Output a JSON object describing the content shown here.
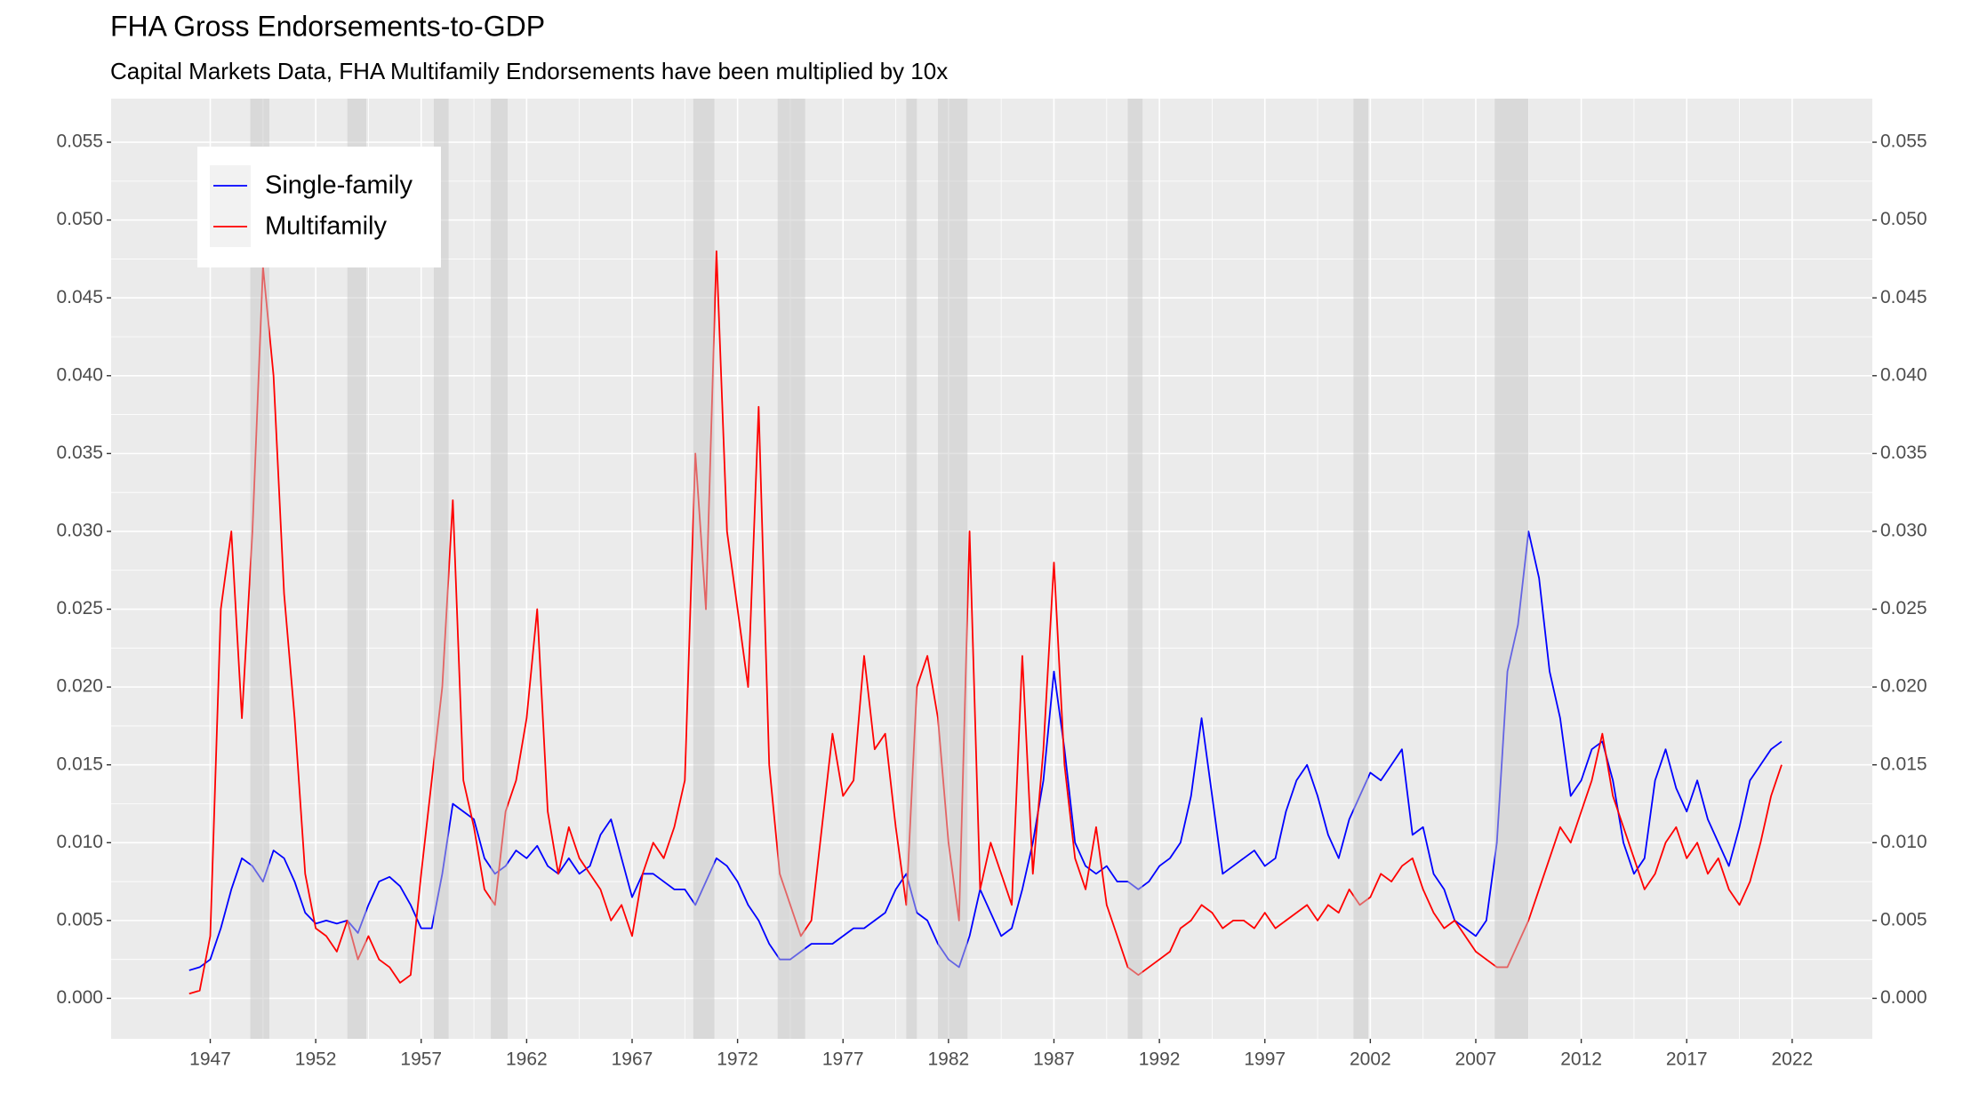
{
  "chart_data": {
    "type": "line",
    "title": "FHA Gross Endorsements-to-GDP",
    "subtitle": "Capital Markets Data, FHA Multifamily Endorsements have been multiplied by 10x",
    "x": [
      1946,
      1946.5,
      1947,
      1947.5,
      1948,
      1948.5,
      1949,
      1949.5,
      1950,
      1950.5,
      1951,
      1951.5,
      1952,
      1952.5,
      1953,
      1953.5,
      1954,
      1954.5,
      1955,
      1955.5,
      1956,
      1956.5,
      1957,
      1957.5,
      1958,
      1958.5,
      1959,
      1959.5,
      1960,
      1960.5,
      1961,
      1961.5,
      1962,
      1962.5,
      1963,
      1963.5,
      1964,
      1964.5,
      1965,
      1965.5,
      1966,
      1966.5,
      1967,
      1967.5,
      1968,
      1968.5,
      1969,
      1969.5,
      1970,
      1970.5,
      1971,
      1971.5,
      1972,
      1972.5,
      1973,
      1973.5,
      1974,
      1974.5,
      1975,
      1975.5,
      1976,
      1976.5,
      1977,
      1977.5,
      1978,
      1978.5,
      1979,
      1979.5,
      1980,
      1980.5,
      1981,
      1981.5,
      1982,
      1982.5,
      1983,
      1983.5,
      1984,
      1984.5,
      1985,
      1985.5,
      1986,
      1986.5,
      1987,
      1987.5,
      1988,
      1988.5,
      1989,
      1989.5,
      1990,
      1990.5,
      1991,
      1991.5,
      1992,
      1992.5,
      1993,
      1993.5,
      1994,
      1994.5,
      1995,
      1995.5,
      1996,
      1996.5,
      1997,
      1997.5,
      1998,
      1998.5,
      1999,
      1999.5,
      2000,
      2000.5,
      2001,
      2001.5,
      2002,
      2002.5,
      2003,
      2003.5,
      2004,
      2004.5,
      2005,
      2005.5,
      2006,
      2006.5,
      2007,
      2007.5,
      2008,
      2008.5,
      2009,
      2009.5,
      2010,
      2010.5,
      2011,
      2011.5,
      2012,
      2012.5,
      2013,
      2013.5,
      2014,
      2014.5,
      2015,
      2015.5,
      2016,
      2016.5,
      2017,
      2017.5,
      2018,
      2018.5,
      2019,
      2019.5,
      2020,
      2020.5,
      2021,
      2021.5
    ],
    "series": [
      {
        "name": "Single-family",
        "color": "blue",
        "values": [
          0.0018,
          0.002,
          0.0025,
          0.0045,
          0.007,
          0.009,
          0.0085,
          0.0075,
          0.0095,
          0.009,
          0.0075,
          0.0055,
          0.0048,
          0.005,
          0.0048,
          0.005,
          0.0042,
          0.006,
          0.0075,
          0.0078,
          0.0072,
          0.006,
          0.0045,
          0.0045,
          0.008,
          0.0125,
          0.012,
          0.0115,
          0.009,
          0.008,
          0.0085,
          0.0095,
          0.009,
          0.0098,
          0.0085,
          0.008,
          0.009,
          0.008,
          0.0085,
          0.0105,
          0.0115,
          0.009,
          0.0065,
          0.008,
          0.008,
          0.0075,
          0.007,
          0.007,
          0.006,
          0.0075,
          0.009,
          0.0085,
          0.0075,
          0.006,
          0.005,
          0.0035,
          0.0025,
          0.0025,
          0.003,
          0.0035,
          0.0035,
          0.0035,
          0.004,
          0.0045,
          0.0045,
          0.005,
          0.0055,
          0.007,
          0.008,
          0.0055,
          0.005,
          0.0035,
          0.0025,
          0.002,
          0.004,
          0.007,
          0.0055,
          0.004,
          0.0045,
          0.007,
          0.01,
          0.014,
          0.021,
          0.016,
          0.01,
          0.0085,
          0.008,
          0.0085,
          0.0075,
          0.0075,
          0.007,
          0.0075,
          0.0085,
          0.009,
          0.01,
          0.013,
          0.018,
          0.013,
          0.008,
          0.0085,
          0.009,
          0.0095,
          0.0085,
          0.009,
          0.012,
          0.014,
          0.015,
          0.013,
          0.0105,
          0.009,
          0.0115,
          0.013,
          0.0145,
          0.014,
          0.015,
          0.016,
          0.0105,
          0.011,
          0.008,
          0.007,
          0.005,
          0.0045,
          0.004,
          0.005,
          0.01,
          0.021,
          0.024,
          0.03,
          0.027,
          0.021,
          0.018,
          0.013,
          0.014,
          0.016,
          0.0165,
          0.014,
          0.01,
          0.008,
          0.009,
          0.014,
          0.016,
          0.0135,
          0.012,
          0.014,
          0.0115,
          0.01,
          0.0085,
          0.011,
          0.014,
          0.015,
          0.016,
          0.0165
        ]
      },
      {
        "name": "Multifamily",
        "color": "red",
        "values": [
          0.0003,
          0.0005,
          0.004,
          0.025,
          0.03,
          0.018,
          0.03,
          0.047,
          0.04,
          0.026,
          0.018,
          0.008,
          0.0045,
          0.004,
          0.003,
          0.005,
          0.0025,
          0.004,
          0.0025,
          0.002,
          0.001,
          0.0015,
          0.008,
          0.014,
          0.02,
          0.032,
          0.014,
          0.011,
          0.007,
          0.006,
          0.012,
          0.014,
          0.018,
          0.025,
          0.012,
          0.008,
          0.011,
          0.009,
          0.008,
          0.007,
          0.005,
          0.006,
          0.004,
          0.008,
          0.01,
          0.009,
          0.011,
          0.014,
          0.035,
          0.025,
          0.048,
          0.03,
          0.025,
          0.02,
          0.038,
          0.015,
          0.008,
          0.006,
          0.004,
          0.005,
          0.011,
          0.017,
          0.013,
          0.014,
          0.022,
          0.016,
          0.017,
          0.011,
          0.006,
          0.02,
          0.022,
          0.018,
          0.01,
          0.005,
          0.03,
          0.007,
          0.01,
          0.008,
          0.006,
          0.022,
          0.008,
          0.016,
          0.028,
          0.015,
          0.009,
          0.007,
          0.011,
          0.006,
          0.004,
          0.002,
          0.0015,
          0.002,
          0.0025,
          0.003,
          0.0045,
          0.005,
          0.006,
          0.0055,
          0.0045,
          0.005,
          0.005,
          0.0045,
          0.0055,
          0.0045,
          0.005,
          0.0055,
          0.006,
          0.005,
          0.006,
          0.0055,
          0.007,
          0.006,
          0.0065,
          0.008,
          0.0075,
          0.0085,
          0.009,
          0.007,
          0.0055,
          0.0045,
          0.005,
          0.004,
          0.003,
          0.0025,
          0.002,
          0.002,
          0.0035,
          0.005,
          0.007,
          0.009,
          0.011,
          0.01,
          0.012,
          0.014,
          0.017,
          0.013,
          0.011,
          0.009,
          0.007,
          0.008,
          0.01,
          0.011,
          0.009,
          0.01,
          0.008,
          0.009,
          0.007,
          0.006,
          0.0075,
          0.01,
          0.013,
          0.015
        ]
      }
    ],
    "shaded_periods": [
      [
        1948.9,
        1949.8
      ],
      [
        1953.5,
        1954.4
      ],
      [
        1957.6,
        1958.3
      ],
      [
        1960.3,
        1961.1
      ],
      [
        1969.9,
        1970.9
      ],
      [
        1973.9,
        1975.2
      ],
      [
        1980.0,
        1980.5
      ],
      [
        1981.5,
        1982.9
      ],
      [
        1990.5,
        1991.2
      ],
      [
        2001.2,
        2001.9
      ],
      [
        2007.9,
        2009.5
      ]
    ],
    "shade_color": "#c8c8c8",
    "xlim": [
      1942.3,
      2025.8
    ],
    "xticks": [
      1947,
      1952,
      1957,
      1962,
      1967,
      1972,
      1977,
      1982,
      1987,
      1992,
      1997,
      2002,
      2007,
      2012,
      2017,
      2022
    ],
    "ylim": [
      -0.0026,
      0.0578
    ],
    "yticks": [
      {
        "value": 0,
        "label": "0.000"
      },
      {
        "value": 0.005,
        "label": "0.005"
      },
      {
        "value": 0.01,
        "label": "0.010"
      },
      {
        "value": 0.015,
        "label": "0.015"
      },
      {
        "value": 0.02,
        "label": "0.020"
      },
      {
        "value": 0.025,
        "label": "0.025"
      },
      {
        "value": 0.03,
        "label": "0.030"
      },
      {
        "value": 0.035,
        "label": "0.035"
      },
      {
        "value": 0.04,
        "label": "0.040"
      },
      {
        "value": 0.045,
        "label": "0.045"
      },
      {
        "value": 0.05,
        "label": "0.050"
      },
      {
        "value": 0.055,
        "label": "0.055"
      }
    ],
    "y2lim": [
      -0.0026,
      0.0578
    ],
    "y2ticks": [
      {
        "value": 0,
        "label": "0.000"
      },
      {
        "value": 0.005,
        "label": "0.005"
      },
      {
        "value": 0.01,
        "label": "0.010"
      },
      {
        "value": 0.015,
        "label": "0.015"
      },
      {
        "value": 0.02,
        "label": "0.020"
      },
      {
        "value": 0.025,
        "label": "0.025"
      },
      {
        "value": 0.03,
        "label": "0.030"
      },
      {
        "value": 0.035,
        "label": "0.035"
      },
      {
        "value": 0.04,
        "label": "0.040"
      },
      {
        "value": 0.045,
        "label": "0.045"
      },
      {
        "value": 0.05,
        "label": "0.050"
      },
      {
        "value": 0.055,
        "label": "0.055"
      }
    ],
    "grid": true,
    "legend": "top-left"
  }
}
